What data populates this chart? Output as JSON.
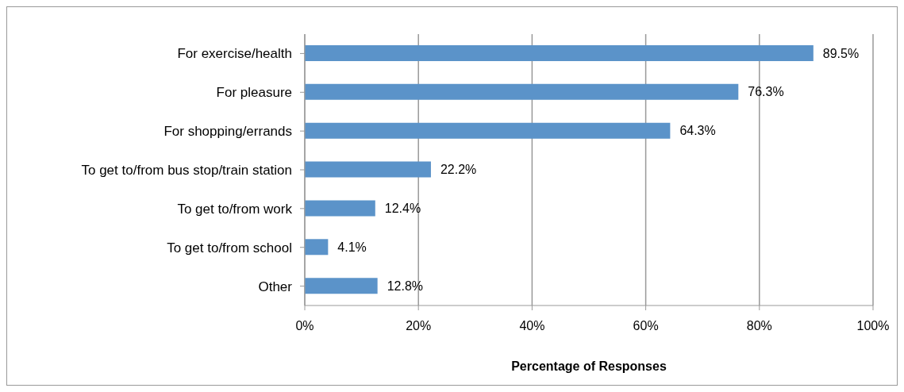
{
  "chart_data": {
    "type": "bar",
    "orientation": "horizontal",
    "xlabel": "Percentage of Responses",
    "categories": [
      "For exercise/health",
      "For pleasure",
      "For shopping/errands",
      "To get to/from bus stop/train station",
      "To get to/from work",
      "To get to/from school",
      "Other"
    ],
    "values": [
      89.5,
      76.3,
      64.3,
      22.2,
      12.4,
      4.1,
      12.8
    ],
    "value_labels": [
      "89.5%",
      "76.3%",
      "64.3%",
      "22.2%",
      "12.4%",
      "4.1%",
      "12.8%"
    ],
    "color": "#5b93c9",
    "xlim": [
      0,
      100
    ],
    "xticks": [
      {
        "value": 0,
        "label": "0%"
      },
      {
        "value": 20,
        "label": "20%"
      },
      {
        "value": 40,
        "label": "40%"
      },
      {
        "value": 60,
        "label": "60%"
      },
      {
        "value": 80,
        "label": "80%"
      },
      {
        "value": 100,
        "label": "100%"
      }
    ],
    "grid": "x"
  }
}
